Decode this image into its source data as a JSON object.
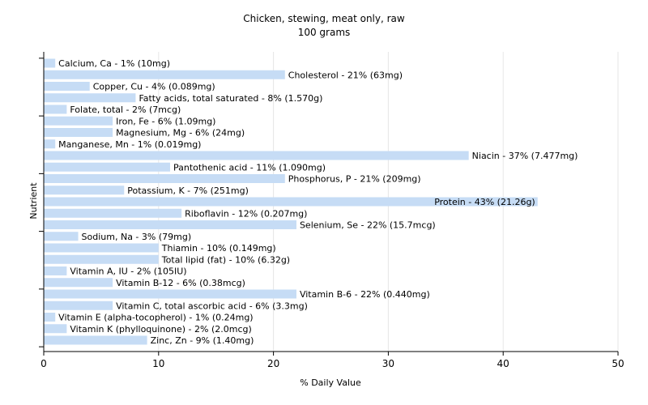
{
  "chart_data": {
    "type": "bar",
    "orientation": "horizontal",
    "title": "Chicken, stewing, meat only, raw",
    "subtitle": "100 grams",
    "xlabel": "% Daily Value",
    "ylabel": "Nutrient",
    "xlim": [
      0,
      50
    ],
    "xticks": [
      0,
      10,
      20,
      30,
      40,
      50
    ],
    "grid": true,
    "bar_color": "#c6dcf5",
    "categories": [
      "Calcium, Ca",
      "Cholesterol",
      "Copper, Cu",
      "Fatty acids, total saturated",
      "Folate, total",
      "Iron, Fe",
      "Magnesium, Mg",
      "Manganese, Mn",
      "Niacin",
      "Pantothenic acid",
      "Phosphorus, P",
      "Potassium, K",
      "Protein",
      "Riboflavin",
      "Selenium, Se",
      "Sodium, Na",
      "Thiamin",
      "Total lipid (fat)",
      "Vitamin A, IU",
      "Vitamin B-12",
      "Vitamin B-6",
      "Vitamin C, total ascorbic acid",
      "Vitamin E (alpha-tocopherol)",
      "Vitamin K (phylloquinone)",
      "Zinc, Zn"
    ],
    "values": [
      1,
      21,
      4,
      8,
      2,
      6,
      6,
      1,
      37,
      11,
      21,
      7,
      43,
      12,
      22,
      3,
      10,
      10,
      2,
      6,
      22,
      6,
      1,
      2,
      9
    ],
    "labels": [
      "Calcium, Ca - 1% (10mg)",
      "Cholesterol - 21% (63mg)",
      "Copper, Cu - 4% (0.089mg)",
      "Fatty acids, total saturated - 8% (1.570g)",
      "Folate, total - 2% (7mcg)",
      "Iron, Fe - 6% (1.09mg)",
      "Magnesium, Mg - 6% (24mg)",
      "Manganese, Mn - 1% (0.019mg)",
      "Niacin - 37% (7.477mg)",
      "Pantothenic acid - 11% (1.090mg)",
      "Phosphorus, P - 21% (209mg)",
      "Potassium, K - 7% (251mg)",
      "Protein - 43% (21.26g)",
      "Riboflavin - 12% (0.207mg)",
      "Selenium, Se - 22% (15.7mcg)",
      "Sodium, Na - 3% (79mg)",
      "Thiamin - 10% (0.149mg)",
      "Total lipid (fat) - 10% (6.32g)",
      "Vitamin A, IU - 2% (105IU)",
      "Vitamin B-12 - 6% (0.38mcg)",
      "Vitamin B-6 - 22% (0.440mg)",
      "Vitamin C, total ascorbic acid - 6% (3.3mg)",
      "Vitamin E (alpha-tocopherol) - 1% (0.24mg)",
      "Vitamin K (phylloquinone) - 2% (2.0mcg)",
      "Zinc, Zn - 9% (1.40mg)"
    ]
  }
}
